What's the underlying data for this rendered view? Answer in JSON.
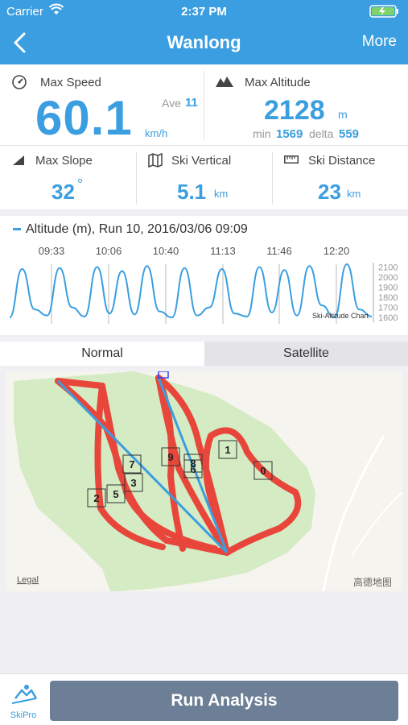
{
  "status": {
    "carrier": "Carrier",
    "time": "2:37 PM"
  },
  "nav": {
    "title": "Wanlong",
    "more": "More"
  },
  "stats": {
    "max_speed": {
      "label": "Max Speed",
      "value": "60.1",
      "unit": "km/h",
      "ave_label": "Ave",
      "ave_value": "11"
    },
    "max_altitude": {
      "label": "Max Altitude",
      "value": "2128",
      "unit": "m",
      "min_label": "min",
      "min_value": "1569",
      "delta_label": "delta",
      "delta_value": "559"
    },
    "max_slope": {
      "label": "Max Slope",
      "value": "32",
      "unit": "°"
    },
    "ski_vertical": {
      "label": "Ski Vertical",
      "value": "5.1",
      "unit": "km"
    },
    "ski_distance": {
      "label": "Ski Distance",
      "value": "23",
      "unit": "km"
    }
  },
  "chart": {
    "title": "Altitude (m), Run 10, 2016/03/06 09:09",
    "watermark": "Ski-Altitude Chart",
    "color": "#3a9ee0"
  },
  "chart_data": {
    "type": "line",
    "title": "Altitude (m), Run 10, 2016/03/06 09:09",
    "x_tick_labels": [
      "09:33",
      "10:06",
      "10:40",
      "11:13",
      "11:46",
      "12:20"
    ],
    "y_tick_labels": [
      "2100",
      "2000",
      "1900",
      "1800",
      "1700",
      "1600"
    ],
    "ylim": [
      1569,
      2128
    ],
    "ylabel": "Altitude (m)",
    "series": [
      {
        "values": [
          1600,
          2080,
          1680,
          1620,
          2090,
          1700,
          1610,
          2100,
          1640,
          2060,
          1630,
          2110,
          1660,
          1600,
          2090,
          1620,
          1700,
          2080,
          1640,
          1610,
          2100,
          1650,
          2070,
          1620,
          2110,
          1720,
          1600,
          2128,
          1680,
          1610
        ]
      }
    ]
  },
  "tabs": {
    "normal": "Normal",
    "satellite": "Satellite"
  },
  "map": {
    "legal": "Legal",
    "provider": "高德地图",
    "markers": [
      "0",
      "1",
      "2",
      "3",
      "5",
      "6",
      "7",
      "8",
      "9"
    ]
  },
  "bottom": {
    "logo": "SkiPro",
    "run_analysis": "Run Analysis"
  },
  "colors": {
    "accent": "#3a9ee0",
    "track": "#e8463a",
    "lift": "#3a9ee0",
    "terrain": "#d4ebc4",
    "button": "#6d7f96"
  }
}
